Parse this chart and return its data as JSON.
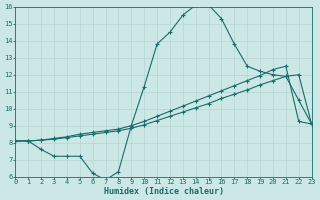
{
  "xlabel": "Humidex (Indice chaleur)",
  "background_color": "#cce8e6",
  "grid_color": "#b8d8d6",
  "line_color": "#1a6b6b",
  "xlim": [
    0,
    23
  ],
  "ylim": [
    6,
    16
  ],
  "xticks": [
    0,
    1,
    2,
    3,
    4,
    5,
    6,
    7,
    8,
    9,
    10,
    11,
    12,
    13,
    14,
    15,
    16,
    17,
    18,
    19,
    20,
    21,
    22,
    23
  ],
  "yticks": [
    6,
    7,
    8,
    9,
    10,
    11,
    12,
    13,
    14,
    15,
    16
  ],
  "line1_x": [
    0,
    1,
    2,
    3,
    4,
    5,
    6,
    7,
    8,
    9,
    10,
    11,
    12,
    13,
    14,
    15,
    16,
    17,
    18,
    19,
    20,
    21,
    22,
    23
  ],
  "line1_y": [
    8.1,
    8.1,
    7.6,
    7.2,
    7.2,
    7.2,
    6.2,
    5.8,
    6.3,
    9.0,
    11.3,
    13.8,
    14.5,
    15.5,
    16.1,
    16.1,
    15.3,
    13.8,
    12.5,
    12.2,
    12.0,
    11.9,
    10.5,
    9.1
  ],
  "line2_x": [
    0,
    1,
    2,
    3,
    4,
    5,
    6,
    7,
    8,
    9,
    10,
    11,
    12,
    13,
    14,
    15,
    16,
    17,
    18,
    19,
    20,
    21,
    22,
    23
  ],
  "line2_y": [
    8.1,
    8.1,
    8.15,
    8.2,
    8.3,
    8.4,
    8.5,
    8.6,
    8.7,
    8.85,
    9.05,
    9.3,
    9.55,
    9.8,
    10.05,
    10.3,
    10.6,
    10.85,
    11.1,
    11.4,
    11.65,
    11.9,
    12.0,
    9.1
  ],
  "line3_x": [
    0,
    1,
    2,
    3,
    4,
    5,
    6,
    7,
    8,
    9,
    10,
    11,
    12,
    13,
    14,
    15,
    16,
    17,
    18,
    19,
    20,
    21,
    22,
    23
  ],
  "line3_y": [
    8.1,
    8.1,
    8.15,
    8.25,
    8.35,
    8.5,
    8.6,
    8.7,
    8.8,
    9.0,
    9.25,
    9.55,
    9.85,
    10.15,
    10.45,
    10.75,
    11.05,
    11.35,
    11.65,
    11.95,
    12.3,
    12.5,
    9.25,
    9.1
  ]
}
